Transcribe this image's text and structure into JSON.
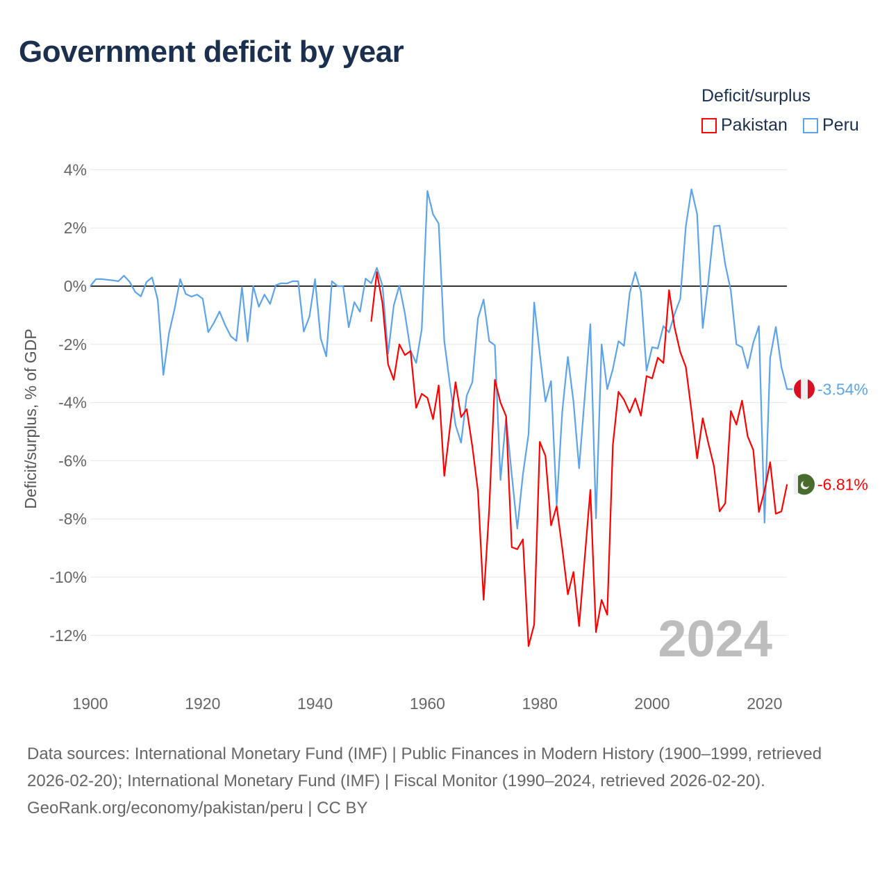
{
  "title": "Government deficit by year",
  "legend": {
    "title": "Deficit/surplus",
    "items": [
      {
        "name": "Pakistan",
        "color": "#ff0000"
      },
      {
        "name": "Peru",
        "color": "#5ba3ea"
      }
    ]
  },
  "footer": {
    "sources": "Data sources: International Monetary Fund (IMF) | Public Finances in Modern History (1900–1999, retrieved 2026-02-20); International Monetary Fund (IMF) | Fiscal Monitor (1990–2024, retrieved 2026-02-20).",
    "link": "GeoRank.org/economy/pakistan/peru | CC BY"
  },
  "chart_data": {
    "type": "line",
    "title": "Government deficit by year",
    "ylabel": "Deficit/surplus, % of GDP",
    "xlabel": "",
    "xlim": [
      1900,
      2024
    ],
    "ylim": [
      -13.5,
      4.5
    ],
    "x_ticks": [
      "1900",
      "1920",
      "1940",
      "1960",
      "1980",
      "2000",
      "2020"
    ],
    "y_ticks": [
      "4%",
      "2%",
      "0%",
      "-2%",
      "-4%",
      "-6%",
      "-8%",
      "-10%",
      "-12%"
    ],
    "year_watermark": "2024",
    "series": [
      {
        "name": "Peru",
        "color": "#5ba3ea",
        "start": 1900,
        "end_label": "-3.54%",
        "values": [
          0,
          0.24,
          0.24,
          0.22,
          0.2,
          0.17,
          0.36,
          0.15,
          -0.2,
          -0.35,
          0.14,
          0.3,
          -0.47,
          -3.05,
          -1.62,
          -0.79,
          0.24,
          -0.27,
          -0.36,
          -0.29,
          -0.43,
          -1.58,
          -1.26,
          -0.87,
          -1.34,
          -1.72,
          -1.88,
          -0.03,
          -1.9,
          0,
          -0.71,
          -0.29,
          -0.61,
          0.03,
          0.1,
          0.09,
          0.17,
          0.17,
          -1.56,
          -1.05,
          0.24,
          -1.79,
          -2.41,
          0.17,
          0,
          0,
          -1.41,
          -0.55,
          -0.88,
          0.26,
          0.1,
          0.63,
          0.02,
          -2.32,
          -0.67,
          0.02,
          -0.94,
          -2.21,
          -2.64,
          -1.47,
          3.27,
          2.47,
          2.15,
          -1.89,
          -3.38,
          -4.77,
          -5.38,
          -3.76,
          -3.3,
          -1.1,
          -0.46,
          -1.89,
          -2.03,
          -6.66,
          -4.5,
          -6.47,
          -8.33,
          -6.47,
          -5.09,
          -0.56,
          -2.32,
          -3.97,
          -3.26,
          -7.53,
          -4.29,
          -2.43,
          -3.97,
          -6.26,
          -3.81,
          -1.31,
          -7.98,
          -2.0,
          -3.54,
          -2.85,
          -1.89,
          -2.05,
          -0.24,
          0.48,
          -0.19,
          -2.9,
          -2.1,
          -2.14,
          -1.37,
          -1.59,
          -0.95,
          -0.44,
          2.06,
          3.33,
          2.48,
          -1.44,
          0.16,
          2.06,
          2.08,
          0.75,
          -0.16,
          -2.0,
          -2.1,
          -2.82,
          -1.94,
          -1.37,
          -8.13,
          -2.46,
          -1.4,
          -2.78,
          -3.54,
          -3.54
        ]
      },
      {
        "name": "Pakistan",
        "color": "#ff0000",
        "start": 1950,
        "end_label": "-6.81%",
        "values": [
          -1.22,
          0.48,
          -0.6,
          -2.69,
          -3.22,
          -2.0,
          -2.37,
          -2.23,
          -4.18,
          -3.7,
          -3.84,
          -4.57,
          -3.41,
          -6.52,
          -4.87,
          -3.3,
          -4.5,
          -4.23,
          -5.51,
          -7.05,
          -10.78,
          -7.64,
          -3.22,
          -4.0,
          -4.47,
          -8.97,
          -9.04,
          -8.7,
          -12.37,
          -11.63,
          -5.35,
          -5.83,
          -8.22,
          -7.56,
          -9.02,
          -10.59,
          -9.82,
          -11.68,
          -9.34,
          -7.0,
          -11.89,
          -10.78,
          -11.29,
          -5.46,
          -3.63,
          -3.91,
          -4.34,
          -3.86,
          -4.45,
          -3.09,
          -3.17,
          -2.46,
          -2.64,
          -0.14,
          -1.43,
          -2.26,
          -2.78,
          -4.29,
          -5.92,
          -4.54,
          -5.4,
          -6.19,
          -7.74,
          -7.46,
          -4.29,
          -4.76,
          -3.93,
          -5.16,
          -5.63,
          -7.76,
          -7.02,
          -6.05,
          -7.82,
          -7.74,
          -6.81
        ]
      }
    ]
  }
}
